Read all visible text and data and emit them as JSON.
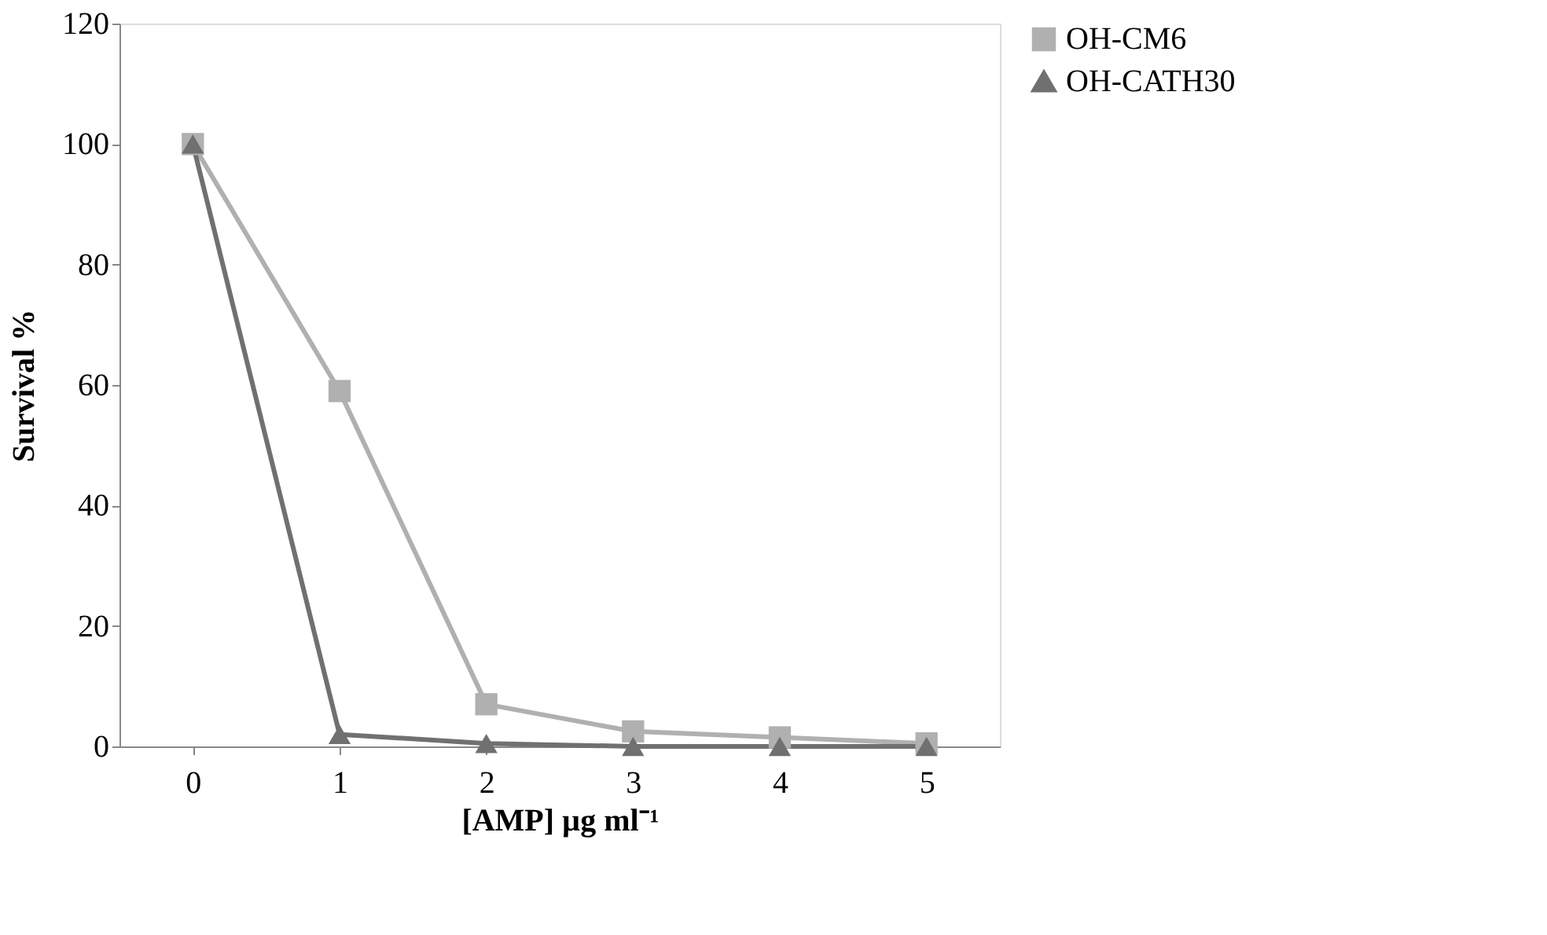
{
  "chart_data": {
    "type": "line",
    "xlabel": "[AMP] µg ml⁻¹",
    "ylabel": "Survival %",
    "categories": [
      "0",
      "1",
      "2",
      "3",
      "4",
      "5"
    ],
    "series": [
      {
        "name": "OH-CM6",
        "color": "#b0b0b0",
        "marker": "square",
        "values": [
          100,
          59,
          7,
          2.5,
          1.5,
          0.5
        ]
      },
      {
        "name": "OH-CATH30",
        "color": "#707070",
        "marker": "triangle",
        "values": [
          100,
          2,
          0.5,
          0,
          0,
          0
        ]
      }
    ],
    "ylim": [
      0,
      120
    ],
    "yticks": [
      0,
      20,
      40,
      60,
      80,
      100,
      120
    ],
    "grid": false,
    "legend": "right"
  }
}
